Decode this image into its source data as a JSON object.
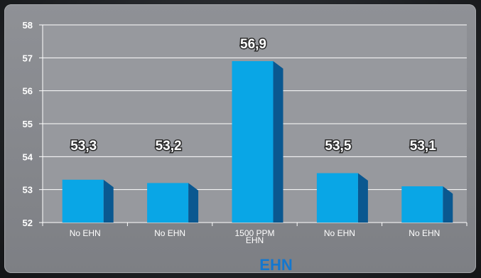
{
  "chart_data": {
    "type": "bar",
    "categories": [
      "No EHN",
      "No EHN",
      "1500 PPM EHN",
      "No EHN",
      "No EHN"
    ],
    "values": [
      53.3,
      53.2,
      56.9,
      53.5,
      53.1
    ],
    "data_labels": [
      "53,3",
      "53,2",
      "56,9",
      "53,5",
      "53,1"
    ],
    "xlabel": "EHN",
    "ylabel": "",
    "ylim": [
      52,
      58
    ],
    "yticks": [
      "52",
      "53",
      "54",
      "55",
      "56",
      "57",
      "58"
    ],
    "grid": true,
    "colors": {
      "bar_front": "#09a6e6",
      "bar_side": "#0a5890",
      "bar_top": "#3cc4f2",
      "plot_bg": "#97999e",
      "xlabel": "#1377cf"
    }
  }
}
